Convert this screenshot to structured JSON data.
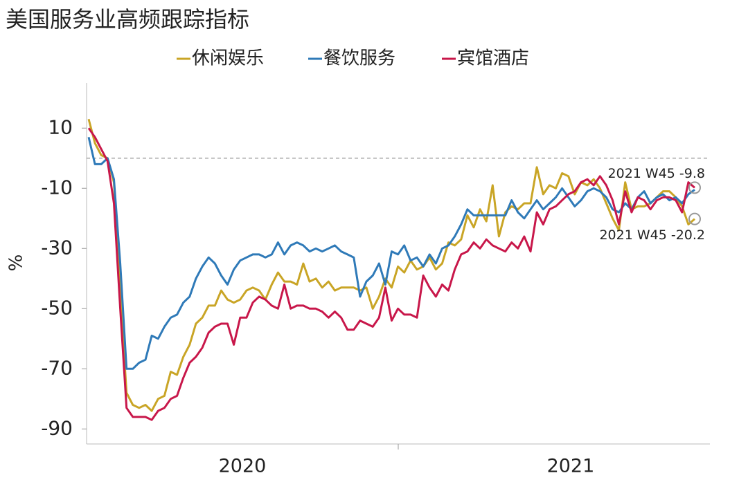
{
  "chart_data": {
    "type": "line",
    "title": "美国服务业高频跟踪指标",
    "y_label": "%",
    "categories": [
      null,
      null,
      null,
      null,
      null,
      null,
      null,
      null,
      null,
      null,
      null,
      null,
      null,
      null,
      null,
      null,
      null,
      null,
      null,
      null,
      null,
      null,
      null,
      null,
      null,
      null,
      "2020",
      null,
      null,
      null,
      null,
      null,
      null,
      null,
      null,
      null,
      null,
      null,
      null,
      null,
      null,
      null,
      null,
      null,
      null,
      null,
      null,
      null,
      null,
      null,
      null,
      null,
      null,
      null,
      null,
      null,
      null,
      null,
      null,
      null,
      null,
      null,
      null,
      null,
      null,
      null,
      null,
      null,
      null,
      null,
      null,
      null,
      null,
      null,
      null,
      null,
      null,
      null,
      "2021",
      null,
      null,
      null,
      null,
      null,
      null,
      null,
      null,
      null,
      null,
      null,
      null,
      null,
      null,
      null,
      null,
      null,
      null
    ],
    "series": [
      {
        "name": "休闲娱乐",
        "color": "#c9a526",
        "values": [
          13,
          5,
          1,
          0,
          -8,
          -45,
          -78,
          -82,
          -83,
          -82,
          -84,
          -80,
          -79,
          -71,
          -72,
          -66,
          -62,
          -55,
          -53,
          -49,
          -49,
          -44,
          -47,
          -48,
          -47,
          -44,
          -43,
          -44,
          -47,
          -42,
          -38,
          -41,
          -41,
          -42,
          -35,
          -41,
          -40,
          -43,
          -41,
          -44,
          -43,
          -43,
          -43,
          -44,
          -43,
          -50,
          -46,
          -40,
          -43,
          -36,
          -38,
          -34,
          -37,
          -36,
          -33,
          -37,
          -35,
          -28,
          -29,
          -27,
          -19,
          -23,
          -17,
          -21,
          -9,
          -26,
          -18,
          -16,
          -17,
          -15,
          -15,
          -3,
          -12,
          -9,
          -10,
          -5,
          -6,
          -12,
          -8,
          -9,
          -7,
          -10,
          -15,
          -20,
          -24,
          -8,
          -17,
          -16,
          -16,
          -15,
          -13,
          -11,
          -11,
          -13,
          -16,
          -22,
          -20.2
        ]
      },
      {
        "name": "餐饮服务",
        "color": "#2f7ab8",
        "values": [
          7,
          -2,
          -2,
          0,
          -7,
          -35,
          -70,
          -70,
          -68,
          -67,
          -59,
          -60,
          -56,
          -53,
          -52,
          -48,
          -46,
          -40,
          -36,
          -33,
          -35,
          -39,
          -42,
          -37,
          -34,
          -33,
          -32,
          -32,
          -33,
          -32,
          -28,
          -32,
          -29,
          -28,
          -29,
          -31,
          -30,
          -31,
          -30,
          -29,
          -31,
          -32,
          -33,
          -46,
          -41,
          -39,
          -35,
          -42,
          -31,
          -32,
          -29,
          -34,
          -33,
          -36,
          -32,
          -35,
          -30,
          -29,
          -26,
          -22,
          -17,
          -19,
          -19,
          -19,
          -19,
          -19,
          -19,
          -14,
          -18,
          -20,
          -17,
          -14,
          -17,
          -15,
          -13,
          -10,
          -13,
          -16,
          -14,
          -11,
          -10,
          -11,
          -13,
          -17,
          -18,
          -15,
          -17,
          -13,
          -11,
          -15,
          -13,
          -12,
          -14,
          -13,
          -15,
          -12,
          -10.5
        ]
      },
      {
        "name": "宾馆酒店",
        "color": "#c8174a",
        "values": [
          10,
          7,
          3,
          -1,
          -15,
          -50,
          -83,
          -86,
          -86,
          -86,
          -87,
          -84,
          -83,
          -80,
          -79,
          -73,
          -68,
          -66,
          -63,
          -58,
          -56,
          -55,
          -55,
          -62,
          -53,
          -53,
          -48,
          -46,
          -47,
          -49,
          -50,
          -42,
          -50,
          -49,
          -49,
          -50,
          -50,
          -51,
          -53,
          -51,
          -53,
          -57,
          -57,
          -54,
          -55,
          -56,
          -53,
          -43,
          -54,
          -50,
          -52,
          -52,
          -53,
          -39,
          -43,
          -46,
          -42,
          -44,
          -37,
          -32,
          -31,
          -28,
          -30,
          -27,
          -29,
          -30,
          -31,
          -28,
          -30,
          -26,
          -31,
          -18,
          -22,
          -17,
          -16,
          -14,
          -12,
          -11,
          -8,
          -7,
          -9,
          -6,
          -9,
          -14,
          -22,
          -11,
          -18,
          -13,
          -14,
          -17,
          -14,
          -13,
          -13,
          -14,
          -18,
          -8,
          -9.8
        ]
      }
    ],
    "annotations": [
      {
        "text": "2021 W45 -9.8",
        "series": 2
      },
      {
        "text": "2021 W45 -20.2",
        "series": 0
      }
    ],
    "hline": 0,
    "ylim": [
      -95,
      25
    ],
    "yticks": [
      10,
      -10,
      -30,
      -50,
      -70,
      -90
    ]
  }
}
